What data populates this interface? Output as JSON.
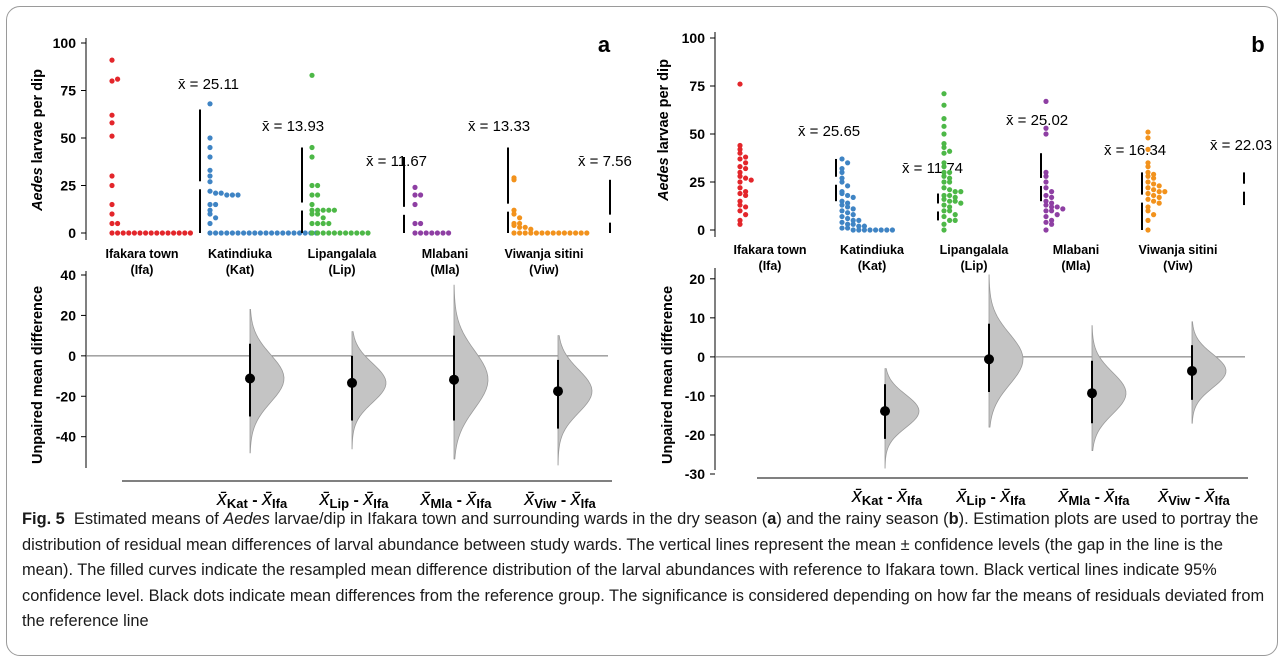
{
  "caption": {
    "lead": "Fig. 5",
    "t1": "Estimated means of ",
    "t1_italic": "Aedes",
    "t2": " larvae/dip in Ifakara town and surrounding wards in the dry season (",
    "t2_bold": "a",
    "t3": ") and the rainy season (",
    "t3_bold": "b",
    "t4": "). Estimation plots are used to portray the distribution of residual mean differences of larval abundance between study wards. The vertical lines represent the mean ± confidence levels (the gap in the line is the mean). The filled curves indicate the resampled mean difference distribution of the larval abundances with reference to Ifakara town. Black vertical lines indicate 95% confidence level. Black dots indicate mean differences from the reference group. The significance is considered depending on how far the means of residuals deviated from the reference line"
  },
  "chart_data": [
    {
      "type": "scatter",
      "panel": "a",
      "ylabel_italic": "Aedes",
      "ylabel_rest": " larvae per dip",
      "ylim": [
        0,
        100
      ],
      "yticks": [
        0,
        25,
        50,
        75,
        100
      ],
      "groups": [
        {
          "label1": "Ifakara town",
          "label2": "(Ifa)",
          "color": "#e3262b",
          "mean_label": "x̄ = 25.11",
          "mean": 25.11,
          "ci": [
            0,
            65
          ],
          "values": [
            91,
            80,
            81,
            62,
            58,
            51,
            30,
            25,
            15,
            10,
            5,
            5,
            0,
            0,
            0,
            0,
            0,
            0,
            0,
            0,
            0,
            0,
            0,
            0,
            0,
            0,
            0
          ]
        },
        {
          "label1": "Katindiuka",
          "label2": "(Kat)",
          "color": "#3f84c4",
          "mean_label": "x̄ = 13.93",
          "mean": 13.93,
          "ci": [
            0,
            45
          ],
          "values": [
            68,
            50,
            45,
            40,
            33,
            30,
            27,
            22,
            21,
            21,
            20,
            20,
            20,
            15,
            15,
            12,
            10,
            8,
            5,
            0,
            0,
            0,
            0,
            0,
            0,
            0,
            0,
            0,
            0,
            0,
            0,
            0,
            0,
            0,
            0,
            0,
            0,
            0,
            0
          ]
        },
        {
          "label1": "Lipangalala",
          "label2": "(Lip)",
          "color": "#4db847",
          "mean_label": "x̄ = 11.67",
          "mean": 11.67,
          "ci": [
            0,
            40
          ],
          "values": [
            83,
            45,
            40,
            25,
            25,
            20,
            20,
            15,
            12,
            12,
            12,
            12,
            12,
            10,
            10,
            8,
            5,
            5,
            5,
            5,
            0,
            0,
            0,
            0,
            0,
            0,
            0,
            0,
            0,
            0,
            0
          ]
        },
        {
          "label1": "Mlabani",
          "label2": "(Mla)",
          "color": "#8e3fa3",
          "mean_label": "x̄ = 13.33",
          "mean": 13.33,
          "ci": [
            0,
            45
          ],
          "values": [
            24,
            20,
            20,
            15,
            5,
            5,
            0,
            0,
            0,
            0,
            0,
            0,
            0
          ]
        },
        {
          "label1": "Viwanja sitini",
          "label2": "(Viw)",
          "color": "#f2921c",
          "mean_label": "x̄ = 7.56",
          "mean": 7.56,
          "ci": [
            0,
            28
          ],
          "values": [
            29,
            28,
            12,
            10,
            8,
            5,
            5,
            4,
            3,
            3,
            2,
            0,
            0,
            0,
            0,
            0,
            0,
            0,
            0,
            0,
            0,
            0,
            0,
            0,
            0
          ]
        }
      ]
    },
    {
      "type": "estimation",
      "panel": "a",
      "ylabel": "Unpaired mean difference",
      "ylim": [
        -55,
        40
      ],
      "yticks": [
        40,
        20,
        0,
        -20,
        -40
      ],
      "differences": [
        {
          "label_a": "Kat",
          "label_b": "Ifa",
          "mean": -11.2,
          "ci": [
            -30,
            6
          ],
          "dist_range": [
            -48,
            23
          ]
        },
        {
          "label_a": "Lip",
          "label_b": "Ifa",
          "mean": -13.4,
          "ci": [
            -32,
            0
          ],
          "dist_range": [
            -46,
            12
          ]
        },
        {
          "label_a": "Mla",
          "label_b": "Ifa",
          "mean": -11.8,
          "ci": [
            -32,
            10
          ],
          "dist_range": [
            -51,
            35
          ]
        },
        {
          "label_a": "Viw",
          "label_b": "Ifa",
          "mean": -17.5,
          "ci": [
            -36,
            -2
          ],
          "dist_range": [
            -54,
            10
          ]
        }
      ]
    },
    {
      "type": "scatter",
      "panel": "b",
      "ylabel_italic": "Aedes",
      "ylabel_rest": " larvae per dip",
      "ylim": [
        0,
        100
      ],
      "yticks": [
        0,
        25,
        50,
        75,
        100
      ],
      "groups": [
        {
          "label1": "Ifakara town",
          "label2": "(Ifa)",
          "color": "#e3262b",
          "mean_label": "x̄ = 25.65",
          "mean": 25.65,
          "ci": [
            15,
            37
          ],
          "values": [
            76,
            44,
            42,
            40,
            38,
            37,
            35,
            33,
            32,
            30,
            28,
            27,
            26,
            25,
            22,
            20,
            19,
            18,
            15,
            13,
            12,
            10,
            8,
            5,
            3
          ]
        },
        {
          "label1": "Katindiuka",
          "label2": "(Kat)",
          "color": "#3f84c4",
          "mean_label": "x̄ = 11.74",
          "mean": 11.74,
          "ci": [
            5,
            19
          ],
          "values": [
            37,
            35,
            32,
            30,
            27,
            25,
            23,
            20,
            19,
            18,
            17,
            15,
            14,
            13,
            12,
            11,
            10,
            9,
            8,
            7,
            6,
            5,
            5,
            4,
            3,
            3,
            2,
            2,
            1,
            1,
            0,
            0,
            0,
            0,
            0,
            0,
            0,
            0
          ]
        },
        {
          "label1": "Lipangalala",
          "label2": "(Lip)",
          "color": "#4db847",
          "mean_label": "x̄ = 25.02",
          "mean": 25.02,
          "ci": [
            15,
            40
          ],
          "values": [
            71,
            65,
            58,
            54,
            50,
            45,
            43,
            41,
            40,
            35,
            33,
            30,
            30,
            28,
            27,
            25,
            25,
            22,
            21,
            20,
            20,
            18,
            18,
            17,
            16,
            15,
            15,
            14,
            13,
            12,
            10,
            10,
            8,
            7,
            5,
            5,
            3,
            0
          ]
        },
        {
          "label1": "Mlabani",
          "label2": "(Mla)",
          "color": "#8e3fa3",
          "mean_label": "x̄ = 16.34",
          "mean": 16.34,
          "ci": [
            0,
            30
          ],
          "values": [
            67,
            53,
            50,
            30,
            28,
            25,
            22,
            20,
            18,
            17,
            15,
            14,
            13,
            12,
            12,
            11,
            10,
            10,
            8,
            7,
            5,
            4,
            3,
            0
          ]
        },
        {
          "label1": "Viwanja sitini",
          "label2": "(Viw)",
          "color": "#f2921c",
          "mean_label": "x̄ = 22.03",
          "mean": 22.03,
          "ci": [
            13,
            30
          ],
          "values": [
            51,
            48,
            42,
            35,
            33,
            30,
            29,
            28,
            27,
            25,
            24,
            23,
            22,
            21,
            20,
            20,
            19,
            18,
            17,
            16,
            15,
            14,
            12,
            10,
            8,
            5,
            0
          ]
        }
      ]
    },
    {
      "type": "estimation",
      "panel": "b",
      "ylabel": "Unpaired mean difference",
      "ylim": [
        -30,
        22
      ],
      "yticks": [
        20,
        10,
        0,
        -10,
        -20,
        -30
      ],
      "differences": [
        {
          "label_a": "Kat",
          "label_b": "Ifa",
          "mean": -13.9,
          "ci": [
            -21,
            -7
          ],
          "dist_range": [
            -28.5,
            -3
          ]
        },
        {
          "label_a": "Lip",
          "label_b": "Ifa",
          "mean": -0.6,
          "ci": [
            -9,
            8.5
          ],
          "dist_range": [
            -18,
            21
          ]
        },
        {
          "label_a": "Mla",
          "label_b": "Ifa",
          "mean": -9.3,
          "ci": [
            -17,
            -1
          ],
          "dist_range": [
            -24,
            8
          ]
        },
        {
          "label_a": "Viw",
          "label_b": "Ifa",
          "mean": -3.6,
          "ci": [
            -11,
            3
          ],
          "dist_range": [
            -17,
            9
          ]
        }
      ]
    }
  ]
}
